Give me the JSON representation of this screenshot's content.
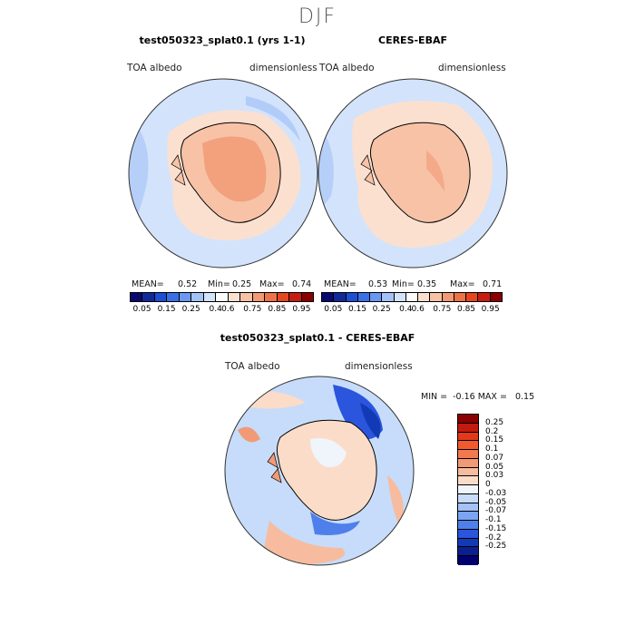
{
  "season": "DJF",
  "panels": {
    "model": {
      "title": "test050323_splat0.1 (yrs 1-1)",
      "variable": "TOA albedo",
      "units": "dimensionless",
      "mean_label": "MEAN=",
      "mean": "0.52",
      "min_label": "Min=",
      "min": "0.25",
      "max_label": "Max=",
      "max": "0.74"
    },
    "obs": {
      "title": "CERES-EBAF",
      "variable": "TOA albedo",
      "units": "dimensionless",
      "mean_label": "MEAN=",
      "mean": "0.53",
      "min_label": "Min=",
      "min": "0.35",
      "max_label": "Max=",
      "max": "0.71"
    },
    "diff": {
      "title": "test050323_splat0.1 - CERES-EBAF",
      "variable": "TOA albedo",
      "units": "dimensionless",
      "range_label": "MIN =  -0.16 MAX =   0.15"
    }
  },
  "abs_colorbar": {
    "colors": [
      "#0a0a6e",
      "#102a9a",
      "#1f4ed6",
      "#3a6fe8",
      "#6a98f2",
      "#a3c2f7",
      "#d3e3fb",
      "#fbfbfb",
      "#fbe0d0",
      "#f7c2a6",
      "#f29a76",
      "#ee7247",
      "#e6461d",
      "#c61d10",
      "#8b0000"
    ],
    "labels": [
      "0.05",
      "0.15",
      "0.25",
      "0.4",
      "0.6",
      "0.75",
      "0.85",
      "0.95"
    ]
  },
  "diff_colorbar": {
    "colors": [
      "#8b0000",
      "#c21a0f",
      "#e3391a",
      "#f25a2e",
      "#f27a4f",
      "#f29a76",
      "#f7bc9f",
      "#fbdcc8",
      "#f0f4fb",
      "#c6dcfa",
      "#a3c2f7",
      "#7ba5f2",
      "#4f7fea",
      "#2a55dc",
      "#123ab5",
      "#0a2090",
      "#00006e"
    ],
    "labels": [
      "0.25",
      "0.2",
      "0.15",
      "0.1",
      "0.07",
      "0.05",
      "0.03",
      "0",
      "-0.03",
      "-0.05",
      "-0.07",
      "-0.1",
      "-0.15",
      "-0.2",
      "-0.25"
    ]
  }
}
